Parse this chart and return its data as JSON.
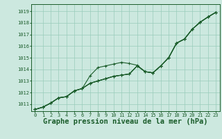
{
  "title": "Graphe pression niveau de la mer (hPa)",
  "ylim": [
    1010.4,
    1019.6
  ],
  "xlim": [
    -0.5,
    23.5
  ],
  "yticks": [
    1011,
    1012,
    1013,
    1014,
    1015,
    1016,
    1017,
    1018,
    1019
  ],
  "xticks": [
    0,
    1,
    2,
    3,
    4,
    5,
    6,
    7,
    8,
    9,
    10,
    11,
    12,
    13,
    14,
    15,
    16,
    17,
    18,
    19,
    20,
    21,
    22,
    23
  ],
  "bg_color": "#cce8df",
  "line_color": "#1a5c2a",
  "grid_color": "#99ccbb",
  "series1": [
    1010.55,
    1010.75,
    1011.1,
    1011.55,
    1011.65,
    1012.15,
    1012.35,
    1012.8,
    1013.0,
    1013.2,
    1013.4,
    1013.5,
    1013.6,
    1014.3,
    1013.8,
    1013.7,
    1014.3,
    1015.0,
    1016.25,
    1016.6,
    1017.45,
    1018.05,
    1018.5,
    1018.9
  ],
  "series2": [
    1010.55,
    1010.75,
    1011.1,
    1011.55,
    1011.65,
    1012.15,
    1012.35,
    1013.45,
    1014.15,
    1014.3,
    1014.45,
    1014.6,
    1014.5,
    1014.35,
    1013.8,
    1013.7,
    1014.3,
    1015.0,
    1016.25,
    1016.6,
    1017.45,
    1018.05,
    1018.5,
    1018.9
  ],
  "series3": [
    1010.55,
    1010.75,
    1011.1,
    1011.55,
    1011.65,
    1012.15,
    1012.35,
    1012.8,
    1013.0,
    1013.2,
    1013.4,
    1013.5,
    1013.6,
    1014.3,
    1013.8,
    1013.7,
    1014.3,
    1015.0,
    1016.25,
    1016.6,
    1017.45,
    1018.05,
    1018.5,
    1018.9
  ],
  "series4": [
    1010.55,
    1010.75,
    1011.1,
    1011.55,
    1011.65,
    1012.15,
    1012.35,
    1012.8,
    1013.0,
    1013.2,
    1013.4,
    1013.5,
    1013.6,
    1014.3,
    1013.8,
    1013.7,
    1014.3,
    1015.0,
    1016.25,
    1016.6,
    1017.45,
    1018.05,
    1018.5,
    1018.9
  ],
  "linewidth": 0.8,
  "marker": "+",
  "marker_size": 3.5,
  "marker_lw": 0.8,
  "tick_fontsize": 5.0,
  "title_fontsize": 7.5,
  "title_color": "#1a5c2a",
  "tick_color": "#1a5c2a",
  "spine_color": "#1a5c2a"
}
